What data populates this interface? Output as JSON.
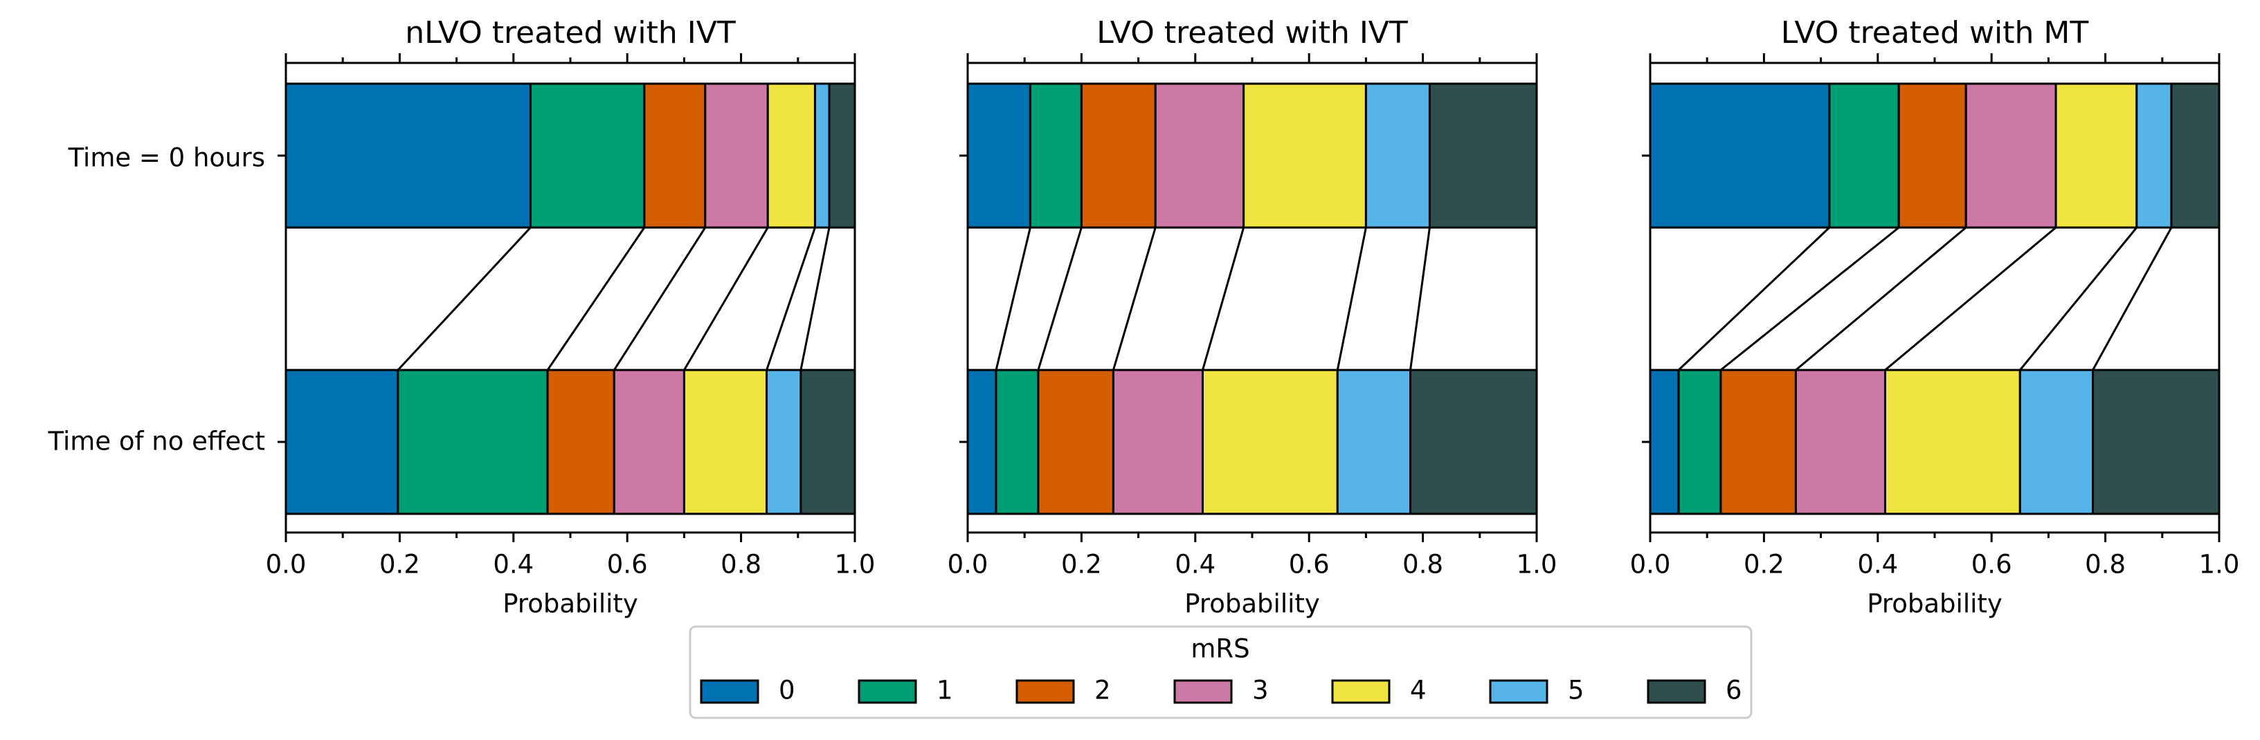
{
  "ylabels": [
    "Time = 0 hours",
    "Time of no effect"
  ],
  "legend": {
    "title": "mRS",
    "entries": [
      {
        "label": "0",
        "color": "#0072B2"
      },
      {
        "label": "1",
        "color": "#009E73"
      },
      {
        "label": "2",
        "color": "#D55E00"
      },
      {
        "label": "3",
        "color": "#CC79A7"
      },
      {
        "label": "4",
        "color": "#F0E442"
      },
      {
        "label": "5",
        "color": "#56B4E9"
      },
      {
        "label": "6",
        "color": "#2F4F4F"
      }
    ]
  },
  "chart_data": [
    {
      "type": "bar",
      "orientation": "horizontal-stacked",
      "title": "nLVO treated with IVT",
      "xlabel": "Probability",
      "xlim": [
        0,
        1
      ],
      "xticks": [
        "0.0",
        "0.2",
        "0.4",
        "0.6",
        "0.8",
        "1.0"
      ],
      "categories": [
        "Time = 0 hours",
        "Time of no effect"
      ],
      "cumulative": [
        [
          0.43,
          0.63,
          0.737,
          0.847,
          0.93,
          0.955,
          1.0
        ],
        [
          0.197,
          0.46,
          0.577,
          0.7,
          0.845,
          0.905,
          1.0
        ]
      ]
    },
    {
      "type": "bar",
      "orientation": "horizontal-stacked",
      "title": "LVO treated with IVT",
      "xlabel": "Probability",
      "xlim": [
        0,
        1
      ],
      "xticks": [
        "0.0",
        "0.2",
        "0.4",
        "0.6",
        "0.8",
        "1.0"
      ],
      "categories": [
        "Time = 0 hours",
        "Time of no effect"
      ],
      "cumulative": [
        [
          0.11,
          0.2,
          0.33,
          0.485,
          0.7,
          0.812,
          1.0
        ],
        [
          0.05,
          0.124,
          0.256,
          0.413,
          0.65,
          0.778,
          1.0
        ]
      ]
    },
    {
      "type": "bar",
      "orientation": "horizontal-stacked",
      "title": "LVO treated with MT",
      "xlabel": "Probability",
      "xlim": [
        0,
        1
      ],
      "xticks": [
        "0.0",
        "0.2",
        "0.4",
        "0.6",
        "0.8",
        "1.0"
      ],
      "categories": [
        "Time = 0 hours",
        "Time of no effect"
      ],
      "cumulative": [
        [
          0.315,
          0.437,
          0.555,
          0.713,
          0.855,
          0.916,
          1.0
        ],
        [
          0.05,
          0.124,
          0.256,
          0.413,
          0.65,
          0.778,
          1.0
        ]
      ]
    }
  ]
}
